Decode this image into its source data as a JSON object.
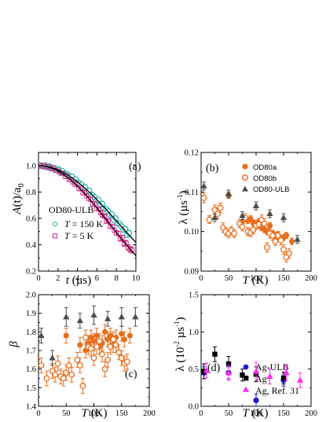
{
  "colors": {
    "teal": "#2fb8b0",
    "magenta": "#d4308c",
    "orange": "#e86f1c",
    "gray": "#4d4d4d",
    "blue": "#1a1ad8",
    "black": "#000000",
    "pink": "#ff2cf2"
  },
  "chart_data": [
    {
      "id": "a",
      "type": "scatter",
      "panel_label": "(a)",
      "xlabel": "t (µs)",
      "xlabel_parts": {
        "var": "t",
        "unit": " (µs)"
      },
      "ylabel": "A(t)/a0",
      "ylabel_parts": {
        "A": "A",
        "t": "(t)/a",
        "sub": "0"
      },
      "xlim": [
        0,
        10
      ],
      "ylim": [
        0.2,
        1.1
      ],
      "xticks": [
        0,
        2,
        4,
        6,
        8,
        10
      ],
      "yticks": [
        0.2,
        0.4,
        0.6,
        0.8,
        1.0
      ],
      "ytick_labels": [
        "0.2",
        "0.4",
        "0.6",
        "0.8",
        "1.0"
      ],
      "annotation": "OD80-ULB",
      "legend": [
        {
          "name": "T = 150 K",
          "var": "T",
          "rest": " = 150 K",
          "color": "#2fb8b0",
          "marker": "circle-open"
        },
        {
          "name": "T = 5 K",
          "var": "T",
          "rest": " = 5 K",
          "color": "#d4308c",
          "marker": "square-open"
        }
      ],
      "series": [
        {
          "name": "T = 150 K",
          "color": "#2fb8b0",
          "marker": "circle-open",
          "sigma": 0.09,
          "x_range": [
            0.1,
            9.3
          ],
          "n": 48
        },
        {
          "name": "T = 5 K",
          "color": "#d4308c",
          "marker": "square-open",
          "sigma": 0.102,
          "x_range": [
            0.1,
            9.6
          ],
          "n": 48
        }
      ],
      "fits": [
        {
          "sigma": 0.09,
          "x_range": [
            0,
            10
          ]
        },
        {
          "sigma": 0.102,
          "x_range": [
            0,
            10
          ]
        }
      ]
    },
    {
      "id": "b",
      "type": "scatter",
      "panel_label": "(b)",
      "xlabel": "T (K)",
      "xlabel_parts": {
        "var": "T",
        "unit": " (K)"
      },
      "ylabel": "λ (µs⁻¹)",
      "ylabel_parts": {
        "main": "λ (µs",
        "sup": "-1",
        "close": ")"
      },
      "xlim": [
        0,
        200
      ],
      "ylim": [
        0.09,
        0.12
      ],
      "xticks": [
        0,
        50,
        100,
        150,
        200
      ],
      "yticks": [
        0.09,
        0.1,
        0.11,
        0.12
      ],
      "ytick_labels": [
        "0.09",
        "0.10",
        "0.11",
        "0.12"
      ],
      "legend": [
        {
          "name": "OD80a",
          "color": "#e86f1c",
          "marker": "circle-filled"
        },
        {
          "name": "OD80b",
          "color": "#e86f1c",
          "marker": "circle-open"
        },
        {
          "name": "OD80-ULB",
          "color": "#4d4d4d",
          "marker": "triangle"
        }
      ],
      "series": [
        {
          "name": "OD80a",
          "color": "#e86f1c",
          "marker": "circle-filled",
          "x": [
            50,
            75,
            85,
            90,
            95,
            100,
            105,
            110,
            115,
            120,
            125,
            130,
            135,
            140,
            150,
            155,
            165
          ],
          "y": [
            0.1092,
            0.1025,
            0.1028,
            0.1032,
            0.1022,
            0.1018,
            0.1025,
            0.101,
            0.1005,
            0.1,
            0.1015,
            0.0995,
            0.099,
            0.0992,
            0.0985,
            0.099,
            0.0975
          ],
          "err": [
            0.0008,
            0.001,
            0.0008,
            0.0008,
            0.0008,
            0.001,
            0.0008,
            0.0008,
            0.0008,
            0.0008,
            0.0008,
            0.0008,
            0.0008,
            0.0008,
            0.0008,
            0.0008,
            0.0008
          ]
        },
        {
          "name": "OD80b",
          "color": "#e86f1c",
          "marker": "circle-open",
          "x": [
            5,
            15,
            25,
            30,
            35,
            40,
            45,
            50,
            55,
            60,
            70,
            75,
            80,
            85,
            90,
            95,
            100,
            105,
            110,
            115,
            120,
            125,
            130,
            135,
            140,
            145,
            150,
            155,
            160
          ],
          "y": [
            0.1085,
            0.103,
            0.1055,
            0.1045,
            0.106,
            0.101,
            0.1,
            0.0995,
            0.1003,
            0.0995,
            0.102,
            0.1012,
            0.1035,
            0.1,
            0.0997,
            0.1005,
            0.1015,
            0.1018,
            0.103,
            0.102,
            0.096,
            0.0995,
            0.099,
            0.0975,
            0.099,
            0.0978,
            0.0955,
            0.0935,
            0.0945
          ],
          "err": [
            0.0012,
            0.001,
            0.0012,
            0.0012,
            0.0012,
            0.0012,
            0.001,
            0.001,
            0.001,
            0.001,
            0.001,
            0.001,
            0.001,
            0.001,
            0.001,
            0.001,
            0.001,
            0.001,
            0.0012,
            0.0012,
            0.0012,
            0.0012,
            0.0012,
            0.001,
            0.001,
            0.0012,
            0.0012,
            0.0012,
            0.0012
          ]
        },
        {
          "name": "OD80-ULB",
          "color": "#4d4d4d",
          "marker": "triangle",
          "x": [
            5,
            25,
            50,
            75,
            100,
            125,
            150,
            175
          ],
          "y": [
            0.1115,
            0.1035,
            0.1095,
            0.104,
            0.1065,
            0.1045,
            0.1035,
            0.098
          ],
          "err": [
            0.001,
            0.001,
            0.001,
            0.001,
            0.001,
            0.001,
            0.001,
            0.001
          ]
        }
      ]
    },
    {
      "id": "c",
      "type": "scatter",
      "panel_label": "(c)",
      "xlabel": "T (K)",
      "xlabel_parts": {
        "var": "T",
        "unit": " (K)"
      },
      "ylabel": "β",
      "ylabel_parts": {
        "main": "β"
      },
      "xlim": [
        0,
        200
      ],
      "ylim": [
        1.4,
        2.0
      ],
      "xticks": [
        0,
        50,
        100,
        150,
        200
      ],
      "yticks": [
        1.4,
        1.5,
        1.6,
        1.7,
        1.8,
        1.9,
        2.0
      ],
      "ytick_labels": [
        "1.4",
        "1.5",
        "1.6",
        "1.7",
        "1.8",
        "1.9",
        "2.0"
      ],
      "series": [
        {
          "name": "OD80a",
          "color": "#e86f1c",
          "marker": "circle-filled",
          "x": [
            50,
            75,
            85,
            90,
            95,
            100,
            105,
            110,
            115,
            120,
            125,
            130,
            135,
            140,
            150,
            155,
            165
          ],
          "y": [
            1.78,
            1.73,
            1.7,
            1.74,
            1.77,
            1.75,
            1.78,
            1.72,
            1.74,
            1.8,
            1.76,
            1.78,
            1.73,
            1.77,
            1.79,
            1.76,
            1.78
          ],
          "err": [
            0.04,
            0.04,
            0.04,
            0.04,
            0.04,
            0.04,
            0.04,
            0.04,
            0.04,
            0.04,
            0.04,
            0.04,
            0.04,
            0.04,
            0.04,
            0.04,
            0.04
          ]
        },
        {
          "name": "OD80b",
          "color": "#e86f1c",
          "marker": "circle-open",
          "x": [
            5,
            15,
            25,
            30,
            35,
            40,
            45,
            50,
            55,
            60,
            70,
            75,
            80,
            85,
            90,
            95,
            100,
            105,
            110,
            115,
            120,
            125,
            130,
            135,
            140,
            145,
            150,
            155,
            160
          ],
          "y": [
            1.62,
            1.55,
            1.59,
            1.57,
            1.63,
            1.56,
            1.55,
            1.58,
            1.62,
            1.57,
            1.65,
            1.62,
            1.51,
            1.77,
            1.72,
            1.71,
            1.66,
            1.72,
            1.75,
            1.68,
            1.6,
            1.65,
            1.72,
            1.76,
            1.73,
            1.69,
            1.66,
            1.63,
            1.64
          ],
          "err": [
            0.04,
            0.04,
            0.04,
            0.04,
            0.04,
            0.04,
            0.04,
            0.04,
            0.04,
            0.04,
            0.04,
            0.04,
            0.04,
            0.04,
            0.04,
            0.04,
            0.04,
            0.04,
            0.04,
            0.04,
            0.04,
            0.04,
            0.04,
            0.04,
            0.04,
            0.04,
            0.04,
            0.04,
            0.04
          ]
        },
        {
          "name": "OD80-ULB",
          "color": "#4d4d4d",
          "marker": "triangle",
          "x": [
            5,
            25,
            50,
            75,
            100,
            125,
            150,
            175
          ],
          "y": [
            1.78,
            1.66,
            1.88,
            1.86,
            1.89,
            1.87,
            1.88,
            1.88
          ],
          "err": [
            0.04,
            0.04,
            0.05,
            0.04,
            0.05,
            0.04,
            0.05,
            0.05
          ]
        }
      ]
    },
    {
      "id": "d",
      "type": "scatter",
      "panel_label": "(d)",
      "xlabel": "T (K)",
      "xlabel_parts": {
        "var": "T",
        "unit": " (K)"
      },
      "ylabel": "λ (10⁻² µs⁻¹)",
      "ylabel_parts": {
        "main": "λ (10",
        "sup1": "-2",
        "mid": " µs",
        "sup2": "-1",
        "close": ")"
      },
      "xlim": [
        0,
        200
      ],
      "ylim": [
        0.0,
        1.5
      ],
      "xticks": [
        0,
        50,
        100,
        150,
        200
      ],
      "yticks": [
        0.0,
        0.5,
        1.0,
        1.5
      ],
      "ytick_labels": [
        "0.0",
        "0.5",
        "1.0",
        "1.5"
      ],
      "legend": [
        {
          "name": "Ag-ULB",
          "color": "#1a1ad8",
          "marker": "circle-filled"
        },
        {
          "name": "Ag",
          "color": "#000000",
          "marker": "square-filled"
        },
        {
          "name": "Ag, Ref. 31",
          "color": "#ff2cf2",
          "marker": "triangle"
        }
      ],
      "series": [
        {
          "name": "Ag-ULB",
          "color": "#1a1ad8",
          "marker": "circle-filled",
          "x": [
            5,
            50,
            100,
            150
          ],
          "y": [
            0.45,
            0.45,
            0.08,
            0.35
          ],
          "err": [
            0.08,
            0.08,
            0.08,
            0.08
          ]
        },
        {
          "name": "Ag",
          "color": "#000000",
          "marker": "square-filled",
          "x": [
            5,
            25,
            50,
            75,
            100,
            150
          ],
          "y": [
            0.47,
            0.7,
            0.57,
            0.42,
            0.43,
            0.38
          ],
          "err": [
            0.1,
            0.1,
            0.1,
            0.08,
            0.1,
            0.08
          ]
        },
        {
          "name": "Ag, Ref. 31",
          "color": "#ff2cf2",
          "marker": "triangle",
          "x": [
            10,
            50,
            100,
            125,
            155,
            180
          ],
          "y": [
            0.48,
            0.45,
            0.47,
            0.4,
            0.45,
            0.35
          ],
          "err": [
            0.1,
            0.1,
            0.12,
            0.1,
            0.1,
            0.1
          ]
        }
      ]
    }
  ]
}
